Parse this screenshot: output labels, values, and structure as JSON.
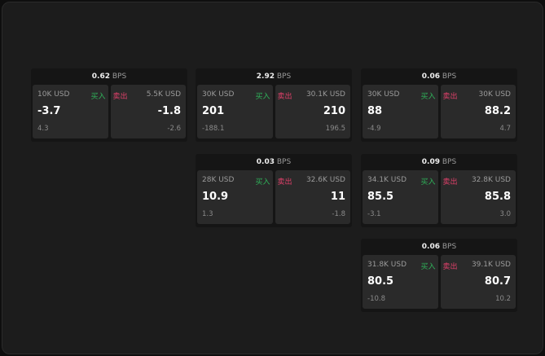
{
  "unit": "BPS",
  "buy_label": "买入",
  "sell_label": "卖出",
  "colors": {
    "buy": "#2fb35a",
    "sell": "#e0406a"
  },
  "widgets": [
    {
      "spread": "0.62",
      "bid_size": "10K USD",
      "bid": "-3.7",
      "bid_change": "4.3",
      "ask_size": "5.5K USD",
      "ask": "-1.8",
      "ask_change": "-2.6"
    },
    {
      "spread": "2.92",
      "bid_size": "30K USD",
      "bid": "201",
      "bid_change": "-188.1",
      "ask_size": "30.1K USD",
      "ask": "210",
      "ask_change": "196.5"
    },
    {
      "spread": "0.06",
      "bid_size": "30K USD",
      "bid": "88",
      "bid_change": "-4.9",
      "ask_size": "30K USD",
      "ask": "88.2",
      "ask_change": "4.7"
    },
    {
      "spread": "0.03",
      "bid_size": "28K USD",
      "bid": "10.9",
      "bid_change": "1.3",
      "ask_size": "32.6K USD",
      "ask": "11",
      "ask_change": "-1.8"
    },
    {
      "spread": "0.09",
      "bid_size": "34.1K USD",
      "bid": "85.5",
      "bid_change": "-3.1",
      "ask_size": "32.8K USD",
      "ask": "85.8",
      "ask_change": "3.0"
    },
    {
      "spread": "0.06",
      "bid_size": "31.8K USD",
      "bid": "80.5",
      "bid_change": "-10.8",
      "ask_size": "39.1K USD",
      "ask": "80.7",
      "ask_change": "10.2"
    }
  ]
}
